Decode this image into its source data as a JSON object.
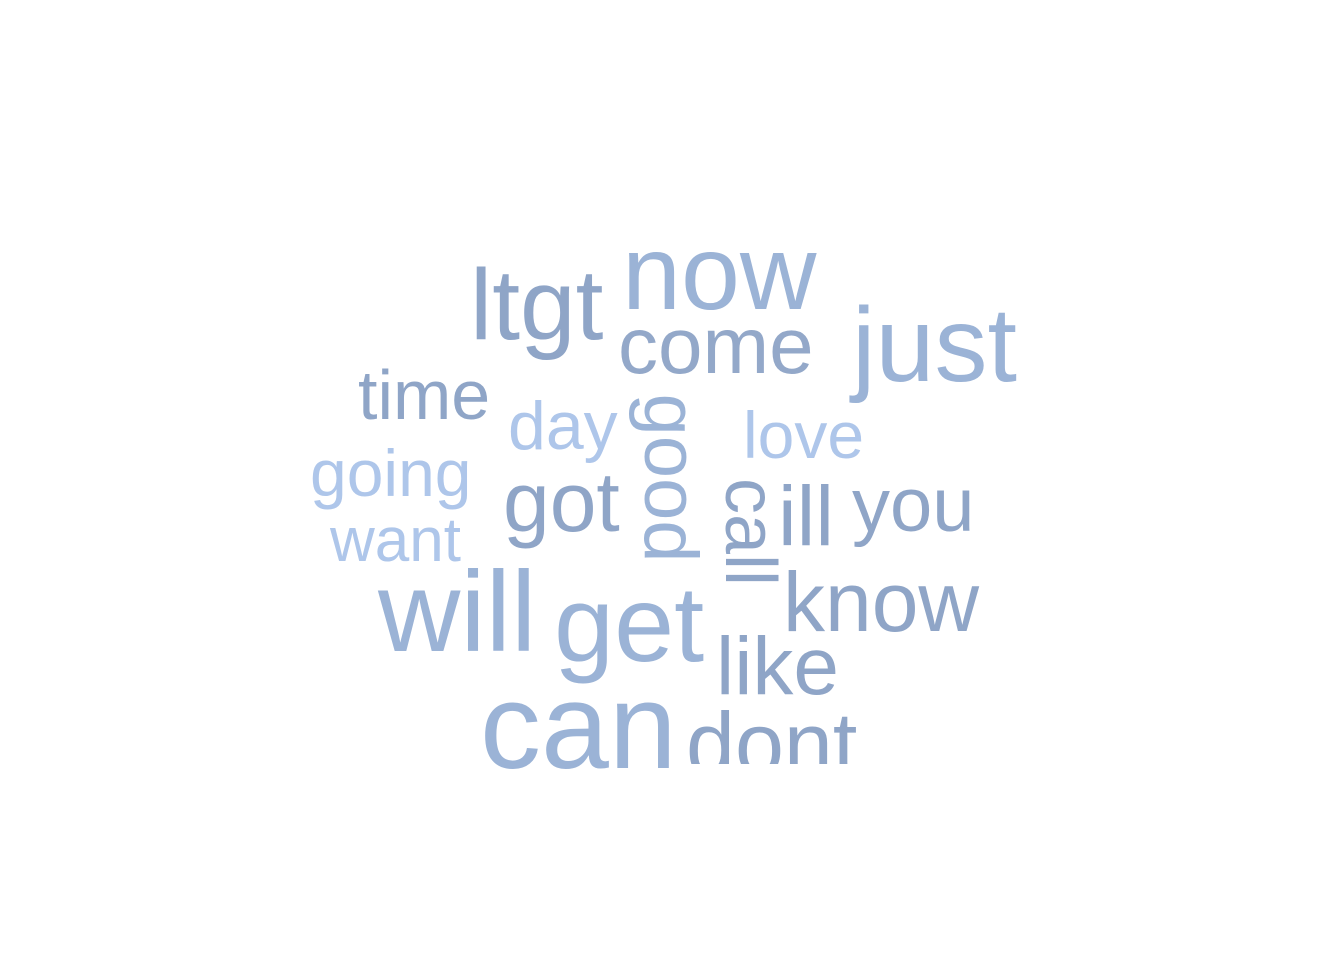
{
  "colors": {
    "background": "#ffffff",
    "light_blue": "#aec6ea",
    "mid_blue": "#9bb3d6",
    "slate_blue": "#8fa5c7",
    "steel_blue": "#93a8c9"
  },
  "words": [
    {
      "text": "now",
      "color": "#9bb3d6",
      "rotated": false
    },
    {
      "text": "ltgt",
      "color": "#8fa5c7",
      "rotated": false
    },
    {
      "text": "come",
      "color": "#93a8c9",
      "rotated": false
    },
    {
      "text": "just",
      "color": "#9bb3d6",
      "rotated": false
    },
    {
      "text": "time",
      "color": "#8fa5c7",
      "rotated": false
    },
    {
      "text": "day",
      "color": "#aec6ea",
      "rotated": false
    },
    {
      "text": "good",
      "color": "#9bb3d6",
      "rotated": true
    },
    {
      "text": "love",
      "color": "#aec6ea",
      "rotated": false
    },
    {
      "text": "going",
      "color": "#aec6ea",
      "rotated": false
    },
    {
      "text": "got",
      "color": "#8fa5c7",
      "rotated": false
    },
    {
      "text": "call",
      "color": "#8fa5c7",
      "rotated": true
    },
    {
      "text": "ill",
      "color": "#8fa5c7",
      "rotated": false
    },
    {
      "text": "you",
      "color": "#8fa5c7",
      "rotated": false
    },
    {
      "text": "want",
      "color": "#aec6ea",
      "rotated": false
    },
    {
      "text": "will",
      "color": "#9bb3d6",
      "rotated": false
    },
    {
      "text": "get",
      "color": "#9bb3d6",
      "rotated": false
    },
    {
      "text": "know",
      "color": "#8fa5c7",
      "rotated": false
    },
    {
      "text": "like",
      "color": "#8fa5c7",
      "rotated": false
    },
    {
      "text": "can",
      "color": "#9bb3d6",
      "rotated": false
    },
    {
      "text": "dont",
      "color": "#8fa5c7",
      "rotated": false
    }
  ]
}
